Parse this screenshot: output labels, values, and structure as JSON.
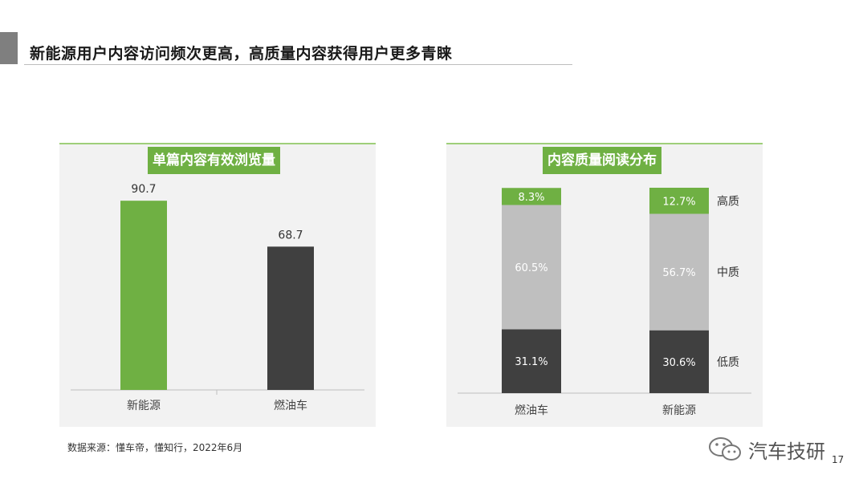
{
  "page": {
    "title": "新能源用户内容访问频次更高，高质量内容获得用户更多青睐",
    "source": "数据来源：懂车帝，懂知行，2022年6月",
    "watermark": "汽车技研",
    "page_number": "17"
  },
  "colors": {
    "green": "#6fb043",
    "gray": "#bfbfbf",
    "dark": "#404040",
    "panel_bg": "#f2f2f2"
  },
  "chart_data": [
    {
      "type": "bar",
      "title": "单篇内容有效浏览量",
      "categories": [
        "新能源",
        "燃油车"
      ],
      "values": [
        90.7,
        68.7
      ],
      "value_labels": [
        "90.7",
        "68.7"
      ],
      "bar_colors": [
        "#6fb043",
        "#404040"
      ],
      "ylim": [
        0,
        100
      ],
      "grid": false,
      "xlabel": "",
      "ylabel": ""
    },
    {
      "type": "bar",
      "stacked": true,
      "percent": true,
      "title": "内容质量阅读分布",
      "categories": [
        "燃油车",
        "新能源"
      ],
      "ylim": [
        0,
        100
      ],
      "grid": false,
      "series": [
        {
          "name": "低质",
          "values": [
            31.1,
            30.6
          ],
          "labels": [
            "31.1%",
            "30.6%"
          ],
          "color": "#404040",
          "label_color": "#ffffff"
        },
        {
          "name": "中质",
          "values": [
            60.5,
            56.7
          ],
          "labels": [
            "60.5%",
            "56.7%"
          ],
          "color": "#bfbfbf",
          "label_color": "#ffffff"
        },
        {
          "name": "高质",
          "values": [
            8.3,
            12.7
          ],
          "labels": [
            "8.3%",
            "12.7%"
          ],
          "color": "#6fb043",
          "label_color": "#ffffff"
        }
      ]
    }
  ]
}
